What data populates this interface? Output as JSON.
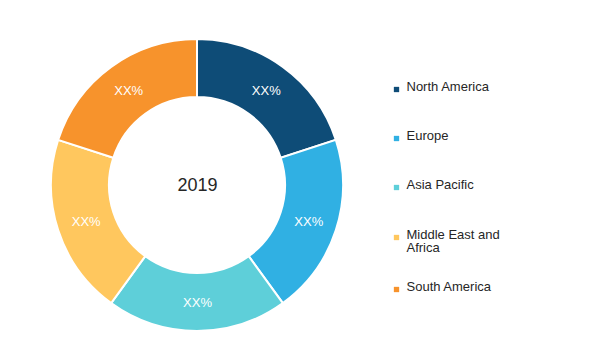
{
  "chart_data": {
    "type": "donut",
    "title": "2019",
    "categories": [
      "North America",
      "Europe",
      "Asia Pacific",
      "Middle East and Africa",
      "South America"
    ],
    "values": [
      20,
      20,
      20,
      20,
      20
    ],
    "value_labels": [
      "XX%",
      "XX%",
      "XX%",
      "XX%",
      "XX%"
    ],
    "colors": [
      "#0e4c77",
      "#30b0e3",
      "#5ecfd9",
      "#ffc75e",
      "#f7932c"
    ],
    "data_labels": true,
    "legend": "right"
  }
}
